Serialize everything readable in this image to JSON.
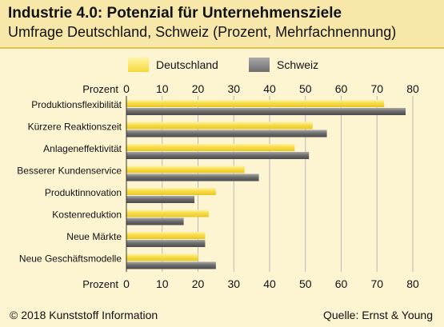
{
  "header": {
    "title": "Industrie 4.0: Potenzial für Unternehmensziele",
    "subtitle": "Umfrage Deutschland, Schweiz (Prozent, Mehrfachnennung)"
  },
  "legend": {
    "series_1": "Deutschland",
    "series_2": "Schweiz"
  },
  "footer": {
    "copyright": "© 2018 Kunststoff Information",
    "source": "Quelle: Ernst & Young"
  },
  "colors": {
    "deutschland": "#f6d83b",
    "schweiz": "#6e6e6e",
    "background": "#fdf5d2",
    "header": "#f7e7a8"
  },
  "chart_data": {
    "type": "bar",
    "orientation": "horizontal",
    "title": "Industrie 4.0: Potenzial für Unternehmensziele",
    "subtitle": "Umfrage Deutschland, Schweiz (Prozent, Mehrfachnennung)",
    "axis_label": "Prozent",
    "xlim": [
      0,
      80
    ],
    "ticks": [
      0,
      10,
      20,
      30,
      40,
      50,
      60,
      70,
      80
    ],
    "grid": true,
    "legend_position": "top",
    "categories": [
      "Produktionsflexibilität",
      "Kürzere Reaktionszeit",
      "Anlageneffektivität",
      "Besserer Kundenservice",
      "Produktinnovation",
      "Kostenreduktion",
      "Neue Märkte",
      "Neue Geschäftsmodelle"
    ],
    "series": [
      {
        "name": "Deutschland",
        "values": [
          72,
          52,
          47,
          33,
          25,
          23,
          22,
          20
        ]
      },
      {
        "name": "Schweiz",
        "values": [
          78,
          56,
          51,
          37,
          19,
          16,
          22,
          25
        ]
      }
    ]
  }
}
